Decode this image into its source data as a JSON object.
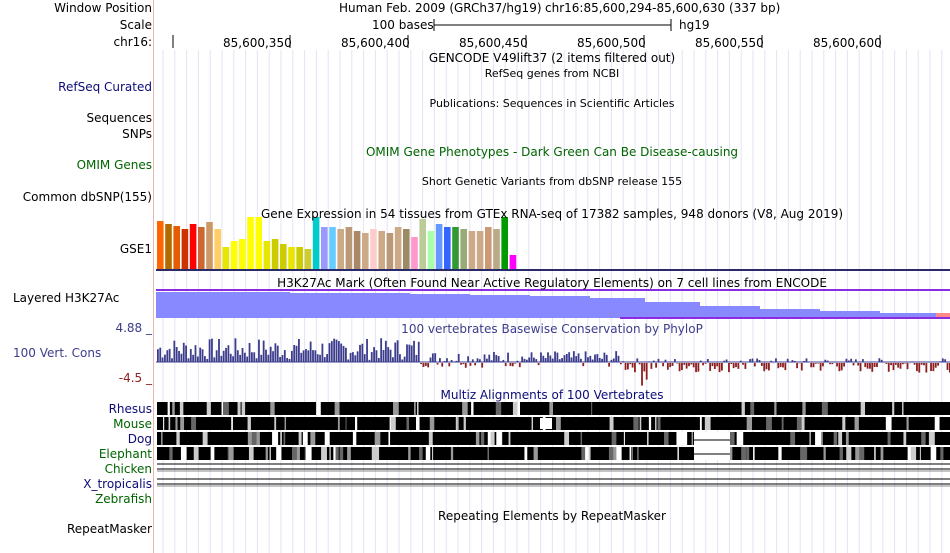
{
  "header": {
    "window_position_label": "Window Position",
    "scale_label": "Scale",
    "chrom_label": "chr16:",
    "assembly_text": "Human Feb. 2009 (GRCh37/hg19)",
    "position_text": "chr16:85,600,294-85,600,630 (337 bp)",
    "scale_text": "100 bases",
    "scale_db": "hg19",
    "ruler_ticks": [
      "85,600,350",
      "85,600,400",
      "85,600,450",
      "85,600,500",
      "85,600,550",
      "85,600,600"
    ]
  },
  "tracks": {
    "gencode": {
      "title": "GENCODE V49lift37 (2 items filtered out)"
    },
    "refseq": {
      "label": "RefSeq Curated",
      "title": "RefSeq genes from NCBI",
      "color": "#0c0c78"
    },
    "sequences": {
      "label": "Sequences",
      "title": "Publications: Sequences in Scientific Articles"
    },
    "snps": {
      "label": "SNPs"
    },
    "omim": {
      "label": "OMIM Genes",
      "title": "OMIM Gene Phenotypes - Dark Green Can Be Disease-causing",
      "color": "#006400"
    },
    "dbsnp": {
      "label": "Common dbSNP(155)",
      "title": "Short Genetic Variants from dbSNP release 155"
    },
    "gtex": {
      "label": "GSE1",
      "title": "Gene Expression in 54 tissues from GTEx RNA-seq of 17382 samples, 948 donors (V8, Aug 2019)"
    },
    "h3k27ac": {
      "label": "Layered H3K27Ac",
      "title": "H3K27Ac Mark (Often Found Near Active Regulatory Elements) on 7 cell lines from ENCODE"
    },
    "cons": {
      "label": "100 Vert. Cons",
      "title": "100 vertebrates Basewise Conservation by PhyloP",
      "max": "4.88 _",
      "min": "-4.5 _",
      "color": "#3c3c8c"
    },
    "multiz": {
      "title": "Multiz Alignments of 100 Vertebrates",
      "species": [
        {
          "name": "Rhesus",
          "color": "#0c0c78"
        },
        {
          "name": "Mouse",
          "color": "#006400"
        },
        {
          "name": "Dog",
          "color": "#0c0c78"
        },
        {
          "name": "Elephant",
          "color": "#006400"
        },
        {
          "name": "Chicken",
          "color": "#006400"
        },
        {
          "name": "X_tropicalis",
          "color": "#0c0c78"
        },
        {
          "name": "Zebrafish",
          "color": "#006400"
        }
      ]
    },
    "rmsk": {
      "label": "RepeatMasker",
      "title": "Repeating Elements by RepeatMasker"
    }
  },
  "gtex_colors": [
    "#ff6600",
    "#b36b00",
    "#e65c00",
    "#cc3300",
    "#ff0000",
    "#cc6633",
    "#cc9966",
    "#ffcc66",
    "#e6e600",
    "#ffff00",
    "#ffff00",
    "#ffff00",
    "#ffff00",
    "#e6e600",
    "#cccc00",
    "#cccc00",
    "#e6e600",
    "#cccc00",
    "#cccc33",
    "#00cccc",
    "#9999ff",
    "#66ccff",
    "#ccaa88",
    "#bb9977",
    "#aa8866",
    "#ccaa88",
    "#ffcccc",
    "#ccaa88",
    "#bb9977",
    "#ccaa88",
    "#9c8c66",
    "#ff99cc",
    "#bbcc99",
    "#aaffaa",
    "#6699ff",
    "#3366ff",
    "#339933",
    "#99aa77",
    "#ccaa88",
    "#ccaa88",
    "#cc9977",
    "#bbaa88",
    "#009900",
    "#ff00ff",
    "#aaaaaa",
    "#ccaa88"
  ],
  "gtex_values": [
    48,
    45,
    43,
    40,
    45,
    42,
    47,
    40,
    22,
    28,
    30,
    52,
    52,
    28,
    30,
    25,
    22,
    22,
    20,
    52,
    42,
    42,
    40,
    42,
    38,
    36,
    40,
    38,
    36,
    42,
    40,
    32,
    50,
    38,
    45,
    42,
    42,
    40,
    38,
    38,
    42,
    40,
    52,
    14,
    0,
    0
  ]
}
